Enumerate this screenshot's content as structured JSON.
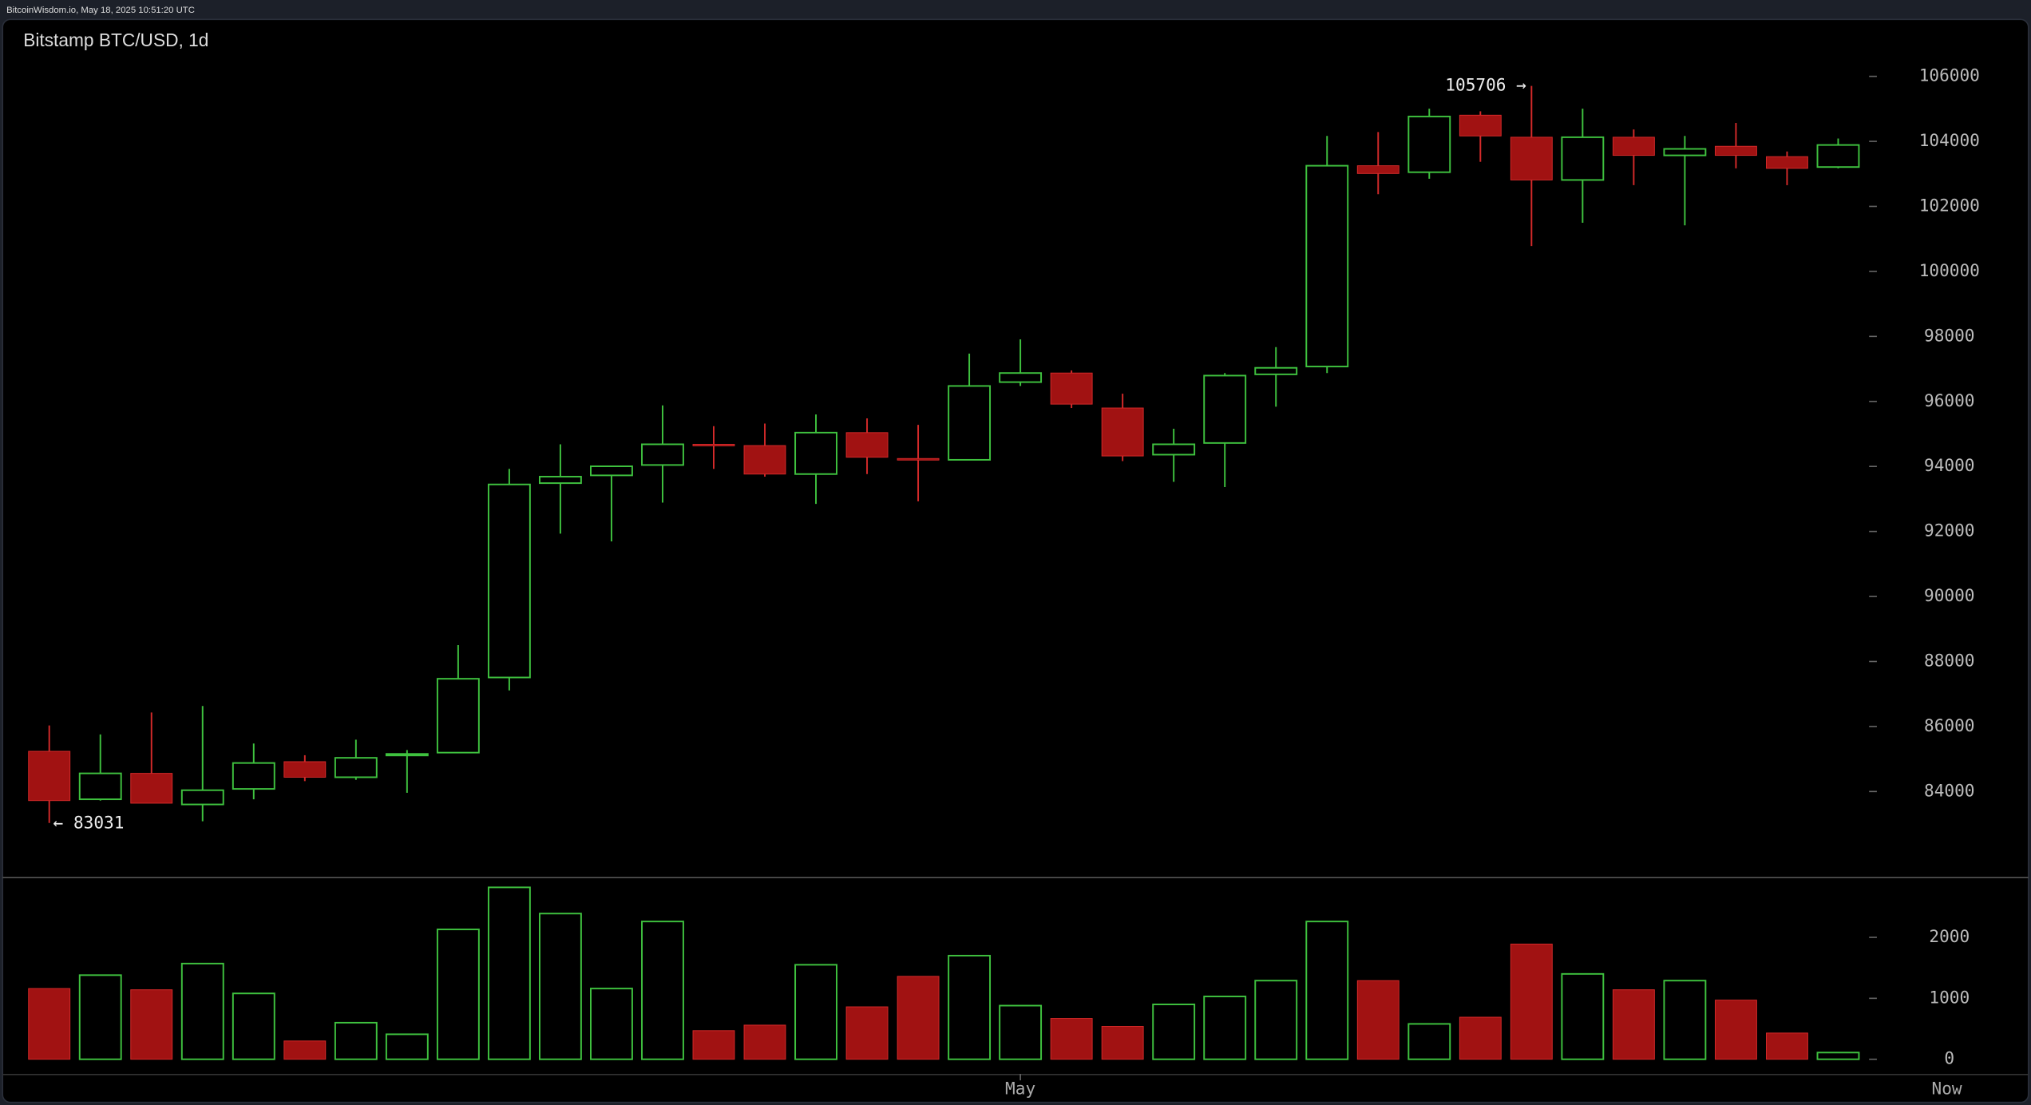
{
  "header": "BitcoinWisdom.io, May 18, 2025 10:51:20 UTC",
  "chart_data": {
    "type": "candlestick",
    "title": "Bitstamp BTC/USD, 1d",
    "categories": [
      null,
      null,
      null,
      null,
      null,
      null,
      null,
      null,
      null,
      null,
      null,
      null,
      null,
      null,
      null,
      null,
      null,
      null,
      null,
      "May",
      null,
      null,
      null,
      null,
      null,
      null,
      null,
      null,
      null,
      null,
      null,
      null,
      null,
      null,
      null,
      null
    ],
    "now_label": "Now",
    "open": [
      85236,
      83761,
      84558,
      83602,
      84080,
      84917,
      84439,
      85116,
      85196,
      87508,
      93486,
      93725,
      94044,
      94681,
      94641,
      93765,
      95040,
      94243,
      94203,
      96594,
      96873,
      95797,
      94362,
      94721,
      96833,
      97073,
      103250,
      103051,
      104804,
      104127,
      102812,
      104127,
      103569,
      103848,
      103529,
      103210
    ],
    "high": [
      86033,
      85754,
      86431,
      86631,
      85475,
      85116,
      85594,
      85275,
      88504,
      93924,
      94681,
      94004,
      95877,
      95239,
      95319,
      95598,
      95478,
      95279,
      97471,
      97909,
      96953,
      96236,
      95159,
      96873,
      97670,
      104167,
      104286,
      105004,
      104924,
      105706,
      105004,
      104366,
      104167,
      104565,
      103688,
      104087
    ],
    "low": [
      83031,
      83721,
      83641,
      83083,
      83761,
      84319,
      84359,
      83960,
      85196,
      87109,
      91931,
      91692,
      92888,
      93924,
      93685,
      92848,
      93765,
      92928,
      94203,
      96475,
      95797,
      94163,
      93525,
      93366,
      95837,
      96873,
      102373,
      102851,
      103370,
      100779,
      101496,
      102652,
      101417,
      103170,
      102652,
      103170
    ],
    "close": [
      83721,
      84558,
      83641,
      84040,
      84877,
      84439,
      85036,
      85156,
      87468,
      93446,
      93685,
      94004,
      94681,
      94641,
      93765,
      95040,
      94283,
      94203,
      96475,
      96873,
      95917,
      94322,
      94681,
      96794,
      97033,
      103250,
      103011,
      104765,
      104167,
      102812,
      104127,
      103569,
      103768,
      103569,
      103170,
      103888
    ],
    "volume": [
      1160,
      1380,
      1140,
      1570,
      1080,
      300,
      600,
      410,
      2130,
      2820,
      2390,
      1160,
      2260,
      470,
      560,
      1550,
      860,
      1360,
      1700,
      880,
      670,
      540,
      900,
      1030,
      1290,
      2260,
      1290,
      580,
      690,
      1890,
      1400,
      1140,
      1290,
      970,
      430,
      110
    ],
    "up_color": "#3fc23f",
    "down_color": "#a11212",
    "down_wick_color": "#d42a2a",
    "ylim": [
      81370,
      107750
    ],
    "yticks": [
      84000,
      86000,
      88000,
      90000,
      92000,
      94000,
      96000,
      98000,
      100000,
      102000,
      104000,
      106000
    ],
    "y2lim": [
      -240,
      2990
    ],
    "y2ticks": [
      0,
      1000,
      2000
    ],
    "max_label": {
      "value": 105706,
      "label": "105706 →"
    },
    "min_label": {
      "value": 83031,
      "label": "← 83031"
    }
  }
}
